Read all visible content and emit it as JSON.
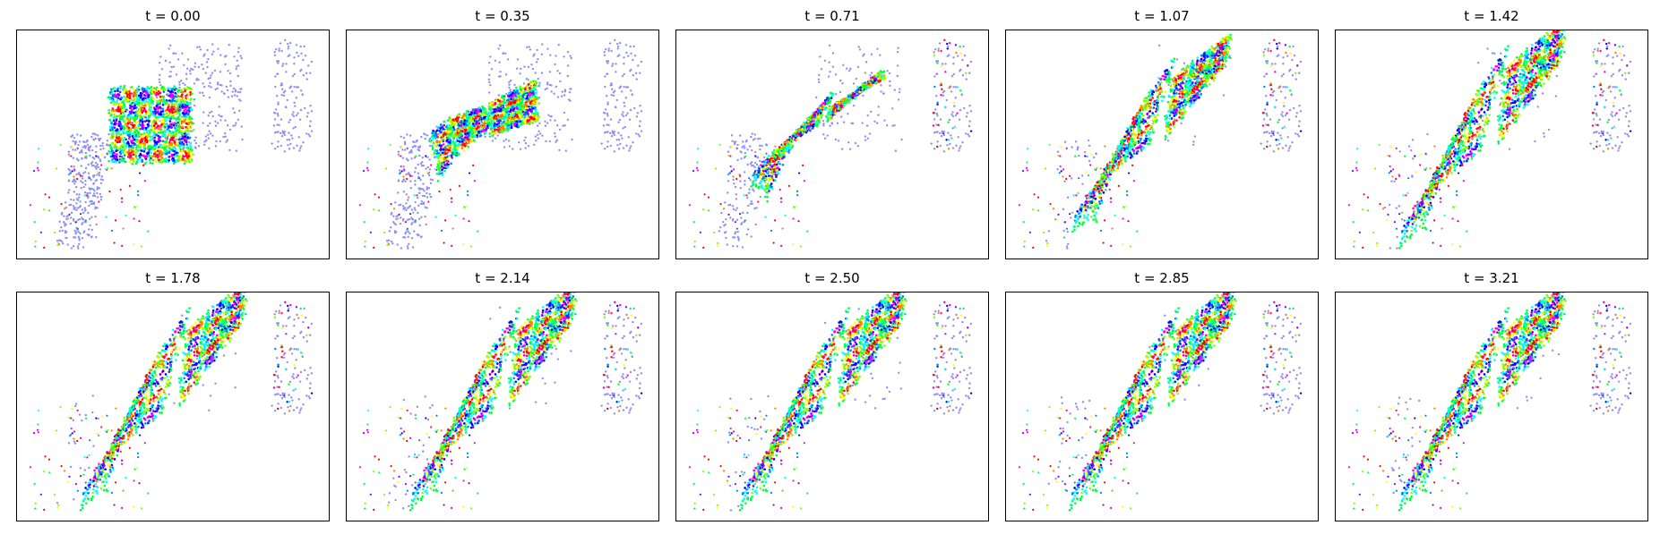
{
  "chart_data": [
    {
      "type": "scatter",
      "title": "t = 0.00",
      "t": 0.0
    },
    {
      "type": "scatter",
      "title": "t = 0.35",
      "t": 0.35
    },
    {
      "type": "scatter",
      "title": "t = 0.71",
      "t": 0.71
    },
    {
      "type": "scatter",
      "title": "t = 1.07",
      "t": 1.07
    },
    {
      "type": "scatter",
      "title": "t = 1.42",
      "t": 1.42
    },
    {
      "type": "scatter",
      "title": "t = 1.78",
      "t": 1.78
    },
    {
      "type": "scatter",
      "title": "t = 2.14",
      "t": 2.14
    },
    {
      "type": "scatter",
      "title": "t = 2.50",
      "t": 2.5
    },
    {
      "type": "scatter",
      "title": "t = 2.85",
      "t": 2.85
    },
    {
      "type": "scatter",
      "title": "t = 3.21",
      "t": 3.21
    }
  ],
  "colors": {
    "background_points": "#9090f0",
    "palette": [
      "#ff0080",
      "#ff0000",
      "#ff8000",
      "#ffff00",
      "#80ff00",
      "#00ff40",
      "#00ffff",
      "#0080ff",
      "#0000ff",
      "#8000ff",
      "#ff00ff"
    ],
    "frame": "#000000"
  },
  "axes": {
    "ticks": "none",
    "grid": false,
    "legend": "none"
  }
}
